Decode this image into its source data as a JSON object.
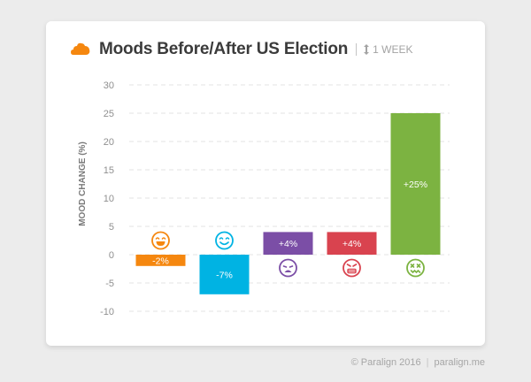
{
  "header": {
    "title": "Moods Before/After US Election",
    "period": "1 WEEK",
    "logo_icon": "cloud-logo-icon",
    "period_icon": "up-down-arrow-icon"
  },
  "footer": {
    "copyright": "© Paralign 2016",
    "website": "paralign.me"
  },
  "chart_data": {
    "type": "bar",
    "title": "Moods Before/After US Election",
    "xlabel": "",
    "ylabel": "MOOD CHANGE (%)",
    "ylim": [
      -12,
      30
    ],
    "yticks": [
      30,
      25,
      20,
      15,
      10,
      5,
      0,
      -5,
      -10
    ],
    "grid": true,
    "categories": [
      "laughing",
      "happy",
      "sad",
      "angry",
      "sick"
    ],
    "values": [
      -2,
      -7,
      4,
      4,
      25
    ],
    "labels": [
      "-2%",
      "-7%",
      "+4%",
      "+4%",
      "+25%"
    ],
    "colors": [
      "#f5870f",
      "#00b3e3",
      "#7b4ea6",
      "#d9434f",
      "#7cb341"
    ],
    "icons": [
      "laughing-face-icon",
      "smiling-face-icon",
      "sad-face-icon",
      "angry-face-icon",
      "sick-face-icon"
    ]
  }
}
